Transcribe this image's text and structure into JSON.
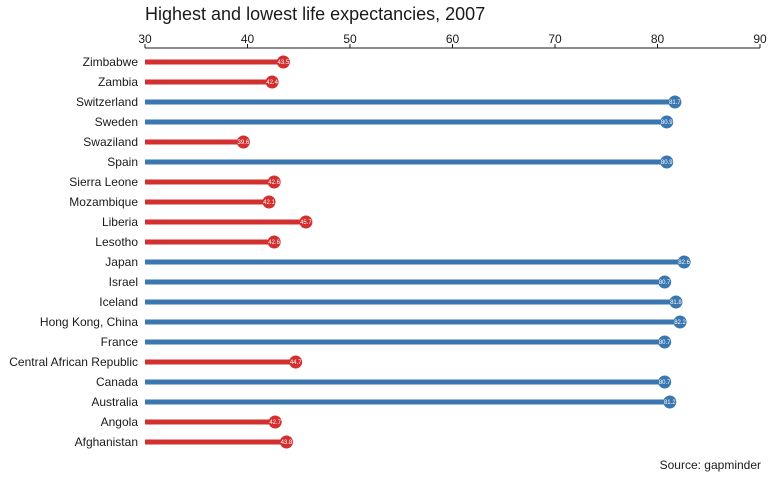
{
  "chart_data": {
    "type": "bar",
    "title": "Highest and lowest life expectancies, 2007",
    "source": "Source: gapminder",
    "xlabel": "",
    "ylabel": "",
    "xlim": [
      30,
      90
    ],
    "x_ticks": [
      30,
      40,
      50,
      60,
      70,
      80,
      90
    ],
    "grid": false,
    "orientation": "horizontal-lollipop",
    "colors": {
      "low": "#d32f2f",
      "high": "#3a76b0"
    },
    "categories": [
      "Zimbabwe",
      "Zambia",
      "Switzerland",
      "Sweden",
      "Swaziland",
      "Spain",
      "Sierra Leone",
      "Mozambique",
      "Liberia",
      "Lesotho",
      "Japan",
      "Israel",
      "Iceland",
      "Hong Kong, China",
      "France",
      "Central African Republic",
      "Canada",
      "Australia",
      "Angola",
      "Afghanistan"
    ],
    "values": [
      43.5,
      42.4,
      81.7,
      80.9,
      39.6,
      80.9,
      42.6,
      42.1,
      45.7,
      42.6,
      82.6,
      80.7,
      81.8,
      82.2,
      80.7,
      44.7,
      80.7,
      81.2,
      42.7,
      43.8
    ],
    "value_labels": [
      "43.5",
      "42.4",
      "81.7",
      "80.9",
      "39.6",
      "80.9",
      "42.6",
      "42.1",
      "45.7",
      "42.6",
      "82.6",
      "80.7",
      "81.8",
      "82.2",
      "80.7",
      "44.7",
      "80.7",
      "81.2",
      "42.7",
      "43.8"
    ],
    "group": [
      "low",
      "low",
      "high",
      "high",
      "low",
      "high",
      "low",
      "low",
      "low",
      "low",
      "high",
      "high",
      "high",
      "high",
      "high",
      "low",
      "high",
      "high",
      "low",
      "low"
    ]
  }
}
